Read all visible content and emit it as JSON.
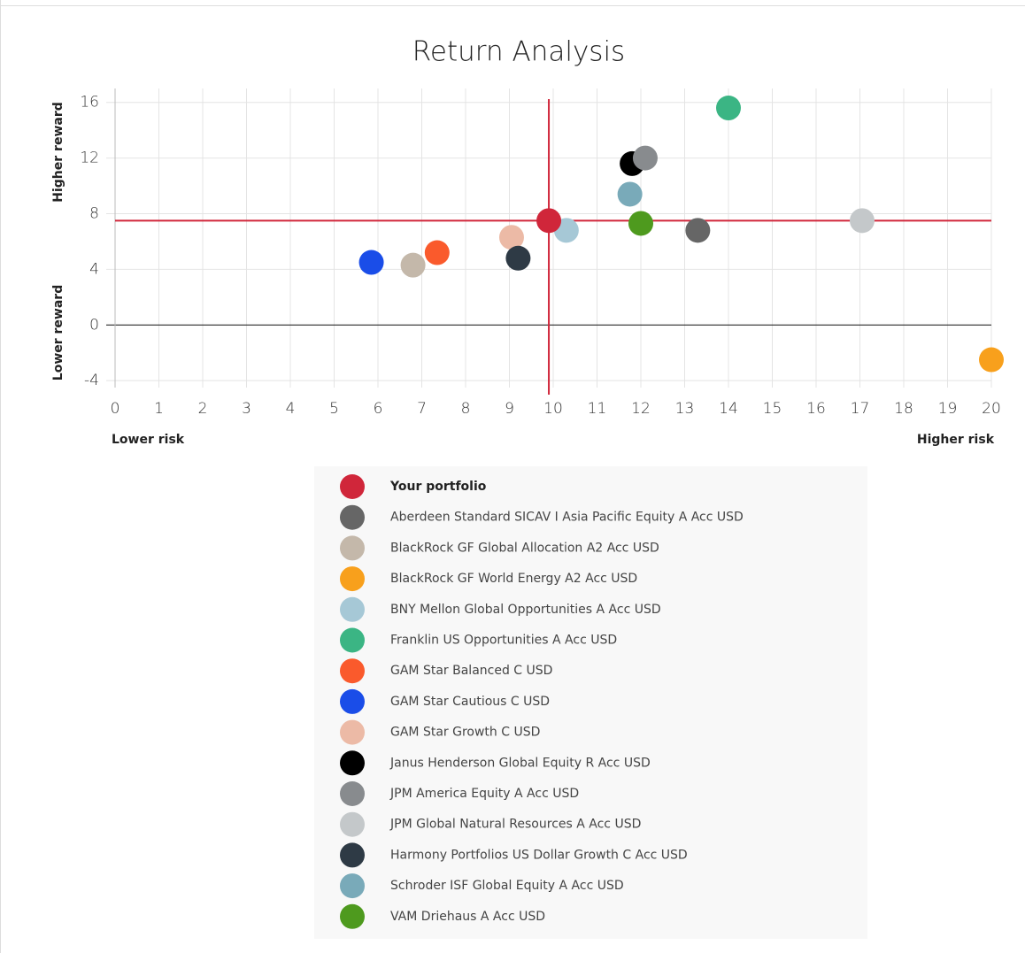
{
  "chart_data": {
    "type": "scatter",
    "title": "Return Analysis",
    "y_label_high": "Higher reward",
    "y_label_low": "Lower reward",
    "x_label_low": "Lower risk",
    "x_label_high": "Higher risk",
    "xlim": [
      0,
      20
    ],
    "xticks": [
      0,
      1,
      2,
      3,
      4,
      5,
      6,
      7,
      8,
      9,
      10,
      11,
      12,
      13,
      14,
      15,
      16,
      17,
      18,
      19,
      20
    ],
    "ylim": [
      -4.5,
      17
    ],
    "yticks": [
      -4,
      0,
      4,
      8,
      12,
      16
    ],
    "grid": true,
    "series": [
      {
        "name": "Your portfolio",
        "color": "#d0263a",
        "x": [
          9.9
        ],
        "values": [
          7.5
        ]
      },
      {
        "name": "Aberdeen Standard SICAV I Asia Pacific Equity A Acc USD",
        "color": "#666666",
        "x": [
          13.3
        ],
        "values": [
          6.8
        ]
      },
      {
        "name": "BlackRock GF Global Allocation A2 Acc USD",
        "color": "#c4b8aa",
        "x": [
          6.8
        ],
        "values": [
          4.3
        ]
      },
      {
        "name": "BlackRock GF World Energy A2 Acc USD",
        "color": "#f8a01c",
        "x": [
          20
        ],
        "values": [
          -2.5
        ]
      },
      {
        "name": "BNY Mellon Global Opportunities A Acc USD",
        "color": "#a6c8d6",
        "x": [
          10.3
        ],
        "values": [
          6.8
        ]
      },
      {
        "name": "Franklin US Opportunities A Acc USD",
        "color": "#3bb584",
        "x": [
          14
        ],
        "values": [
          15.6
        ]
      },
      {
        "name": "GAM Star Balanced C USD",
        "color": "#fa5a2c",
        "x": [
          7.35
        ],
        "values": [
          5.2
        ]
      },
      {
        "name": "GAM Star Cautious C USD",
        "color": "#1a4de8",
        "x": [
          5.85
        ],
        "values": [
          4.5
        ]
      },
      {
        "name": "GAM Star Growth C USD",
        "color": "#ecbaa6",
        "x": [
          9.05
        ],
        "values": [
          6.3
        ]
      },
      {
        "name": "Janus Henderson Global Equity R Acc USD",
        "color": "#000000",
        "x": [
          11.8
        ],
        "values": [
          11.6
        ]
      },
      {
        "name": "JPM America Equity A Acc USD",
        "color": "#888b8e",
        "x": [
          12.1
        ],
        "values": [
          12.0
        ]
      },
      {
        "name": "JPM Global Natural Resources A Acc USD",
        "color": "#c4c8ca",
        "x": [
          17.05
        ],
        "values": [
          7.5
        ]
      },
      {
        "name": "Harmony Portfolios US Dollar Growth C Acc USD",
        "color": "#2e3a45",
        "x": [
          9.2
        ],
        "values": [
          4.8
        ]
      },
      {
        "name": "Schroder ISF Global Equity A Acc USD",
        "color": "#79aab9",
        "x": [
          11.75
        ],
        "values": [
          9.4
        ]
      },
      {
        "name": "VAM Driehaus A Acc USD",
        "color": "#4e9a1e",
        "x": [
          12.0
        ],
        "values": [
          7.3
        ]
      }
    ]
  }
}
